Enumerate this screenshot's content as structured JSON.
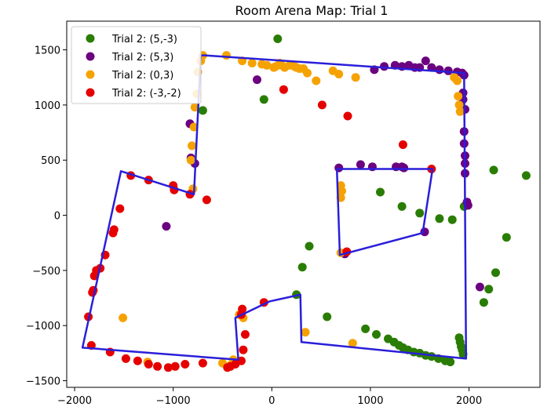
{
  "chart_data": {
    "type": "scatter",
    "title": "Room Arena Map: Trial 1",
    "xlabel": "",
    "ylabel": "",
    "xlim": [
      -2080,
      2720
    ],
    "ylim": [
      -1560,
      1760
    ],
    "xticks": [
      -2000,
      -1000,
      0,
      1000,
      2000
    ],
    "yticks": [
      -1500,
      -1000,
      -500,
      0,
      500,
      1000,
      1500
    ],
    "grid": false,
    "legend_position": "top-left",
    "series": [
      {
        "name": "Trial 2: (5,-3)",
        "color": "#2a7d04",
        "points": [
          [
            60,
            1600
          ],
          [
            -80,
            1050
          ],
          [
            -700,
            950
          ],
          [
            1100,
            210
          ],
          [
            1320,
            80
          ],
          [
            1500,
            20
          ],
          [
            1700,
            -30
          ],
          [
            1830,
            -40
          ],
          [
            1950,
            80
          ],
          [
            2250,
            410
          ],
          [
            2580,
            360
          ],
          [
            2380,
            -200
          ],
          [
            2270,
            -520
          ],
          [
            2200,
            -670
          ],
          [
            2150,
            -790
          ],
          [
            380,
            -280
          ],
          [
            310,
            -470
          ],
          [
            250,
            -720
          ],
          [
            560,
            -920
          ],
          [
            950,
            -1030
          ],
          [
            1060,
            -1080
          ],
          [
            1180,
            -1120
          ],
          [
            1240,
            -1150
          ],
          [
            1290,
            -1180
          ],
          [
            1330,
            -1200
          ],
          [
            1380,
            -1220
          ],
          [
            1440,
            -1240
          ],
          [
            1500,
            -1250
          ],
          [
            1560,
            -1270
          ],
          [
            1620,
            -1280
          ],
          [
            1690,
            -1300
          ],
          [
            1760,
            -1320
          ],
          [
            1810,
            -1330
          ],
          [
            1900,
            -1110
          ],
          [
            1910,
            -1150
          ],
          [
            1920,
            -1190
          ],
          [
            1930,
            -1220
          ],
          [
            1940,
            -1260
          ]
        ]
      },
      {
        "name": "Trial 2: (5,3)",
        "color": "#6b0080",
        "points": [
          [
            -150,
            1230
          ],
          [
            -830,
            830
          ],
          [
            -820,
            520
          ],
          [
            -780,
            470
          ],
          [
            1040,
            1320
          ],
          [
            1140,
            1350
          ],
          [
            1250,
            1360
          ],
          [
            1320,
            1350
          ],
          [
            1390,
            1360
          ],
          [
            1450,
            1340
          ],
          [
            1500,
            1340
          ],
          [
            1560,
            1400
          ],
          [
            1620,
            1340
          ],
          [
            1700,
            1320
          ],
          [
            1790,
            1310
          ],
          [
            1880,
            1300
          ],
          [
            1930,
            1290
          ],
          [
            1950,
            1270
          ],
          [
            1940,
            1110
          ],
          [
            1940,
            1050
          ],
          [
            1960,
            960
          ],
          [
            1950,
            760
          ],
          [
            1950,
            650
          ],
          [
            1960,
            540
          ],
          [
            1960,
            470
          ],
          [
            1960,
            380
          ],
          [
            1980,
            120
          ],
          [
            1990,
            90
          ],
          [
            680,
            430
          ],
          [
            900,
            460
          ],
          [
            1020,
            440
          ],
          [
            1260,
            440
          ],
          [
            1320,
            440
          ],
          [
            1340,
            430
          ],
          [
            1550,
            -150
          ],
          [
            740,
            -350
          ],
          [
            -1070,
            -100
          ],
          [
            2110,
            -650
          ]
        ]
      },
      {
        "name": "Trial 2: (0,3)",
        "color": "#f5a200",
        "points": [
          [
            -700,
            1450
          ],
          [
            -720,
            1400
          ],
          [
            -750,
            1300
          ],
          [
            -760,
            1100
          ],
          [
            -780,
            980
          ],
          [
            -790,
            800
          ],
          [
            -810,
            630
          ],
          [
            -820,
            500
          ],
          [
            -800,
            240
          ],
          [
            -460,
            1450
          ],
          [
            -300,
            1400
          ],
          [
            -200,
            1380
          ],
          [
            -100,
            1370
          ],
          [
            -50,
            1360
          ],
          [
            20,
            1340
          ],
          [
            40,
            1350
          ],
          [
            80,
            1380
          ],
          [
            100,
            1360
          ],
          [
            130,
            1340
          ],
          [
            180,
            1360
          ],
          [
            230,
            1350
          ],
          [
            250,
            1340
          ],
          [
            280,
            1330
          ],
          [
            320,
            1330
          ],
          [
            360,
            1290
          ],
          [
            450,
            1220
          ],
          [
            620,
            1310
          ],
          [
            680,
            1280
          ],
          [
            850,
            1250
          ],
          [
            1850,
            1250
          ],
          [
            1880,
            1220
          ],
          [
            1890,
            1080
          ],
          [
            1900,
            1000
          ],
          [
            1910,
            940
          ],
          [
            700,
            270
          ],
          [
            710,
            220
          ],
          [
            700,
            160
          ],
          [
            700,
            -340
          ],
          [
            -1510,
            -930
          ],
          [
            -1260,
            -1330
          ],
          [
            -500,
            -1340
          ],
          [
            -420,
            -1360
          ],
          [
            -390,
            -1310
          ],
          [
            -330,
            -900
          ],
          [
            -290,
            -930
          ],
          [
            340,
            -1060
          ],
          [
            820,
            -1160
          ]
        ]
      },
      {
        "name": "Trial 2: (-3,-2)",
        "color": "#e50000",
        "points": [
          [
            -1860,
            -920
          ],
          [
            -1830,
            -1180
          ],
          [
            -1820,
            -700
          ],
          [
            -1810,
            -680
          ],
          [
            -1800,
            -550
          ],
          [
            -1740,
            -480
          ],
          [
            -1690,
            -360
          ],
          [
            -1610,
            -160
          ],
          [
            -1600,
            -130
          ],
          [
            -1540,
            60
          ],
          [
            -1430,
            360
          ],
          [
            -1250,
            320
          ],
          [
            -1000,
            270
          ],
          [
            -990,
            230
          ],
          [
            -830,
            190
          ],
          [
            -660,
            140
          ],
          [
            -1780,
            -500
          ],
          [
            -1640,
            -1240
          ],
          [
            -1480,
            -1300
          ],
          [
            -1360,
            -1320
          ],
          [
            -1250,
            -1350
          ],
          [
            -1160,
            -1370
          ],
          [
            -1050,
            -1380
          ],
          [
            -980,
            -1370
          ],
          [
            -880,
            -1350
          ],
          [
            -700,
            -1340
          ],
          [
            -450,
            -1380
          ],
          [
            -420,
            -1370
          ],
          [
            -370,
            -1350
          ],
          [
            -310,
            -1320
          ],
          [
            -290,
            -1220
          ],
          [
            -270,
            -1080
          ],
          [
            -310,
            -900
          ],
          [
            -300,
            -850
          ],
          [
            -80,
            -790
          ],
          [
            120,
            1140
          ],
          [
            510,
            1000
          ],
          [
            770,
            900
          ],
          [
            1330,
            640
          ],
          [
            1620,
            420
          ],
          [
            760,
            -330
          ]
        ]
      }
    ],
    "lines": [
      {
        "color": "#2a1fd9",
        "points": [
          [
            -680,
            1450
          ],
          [
            1950,
            1290
          ],
          [
            1970,
            -1300
          ],
          [
            300,
            -1150
          ],
          [
            290,
            -720
          ],
          [
            -20,
            -780
          ],
          [
            -370,
            -930
          ],
          [
            -340,
            -1310
          ],
          [
            -1920,
            -1200
          ],
          [
            -1530,
            400
          ],
          [
            -790,
            190
          ],
          [
            -720,
            1450
          ],
          [
            -680,
            1450
          ]
        ]
      },
      {
        "color": "#2a1fd9",
        "points": [
          [
            660,
            420
          ],
          [
            1630,
            420
          ],
          [
            1530,
            -160
          ],
          [
            690,
            -360
          ],
          [
            660,
            420
          ]
        ]
      }
    ]
  }
}
